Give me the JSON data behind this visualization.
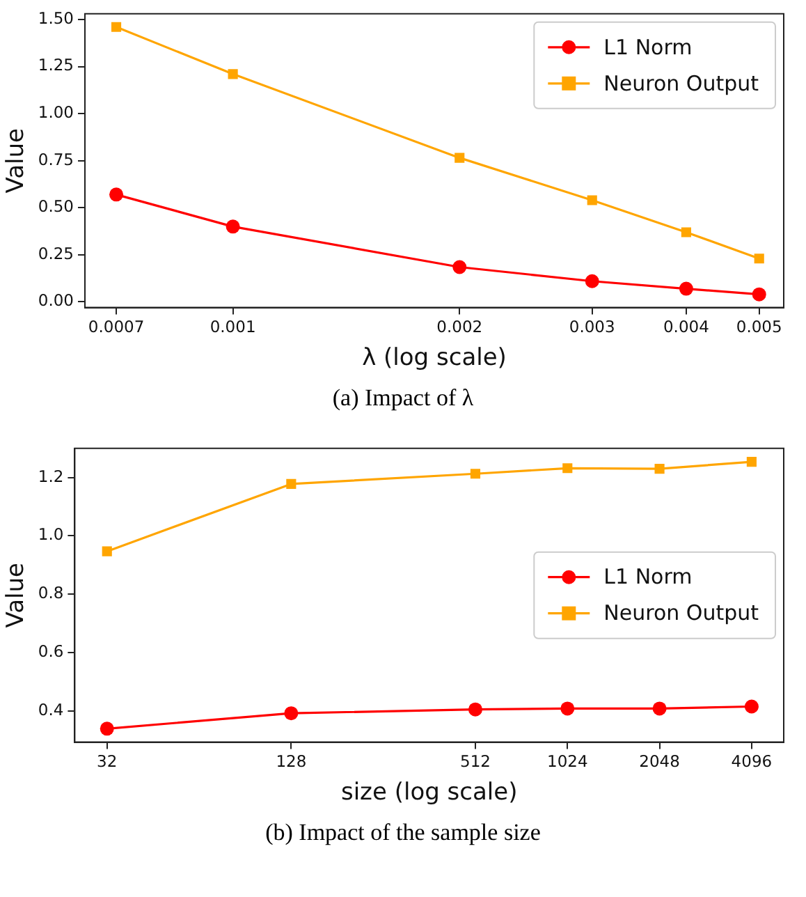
{
  "chart_data": [
    {
      "type": "line",
      "xlabel": "λ (log scale)",
      "ylabel": "Value",
      "annotations": [
        "(a) Impact of λ"
      ],
      "log": "x",
      "x": [
        0.0007,
        0.001,
        0.002,
        0.003,
        0.004,
        0.005
      ],
      "xlim": [
        0.000636,
        0.00539
      ],
      "xticks": [
        0.0007,
        0.001,
        0.002,
        0.003,
        0.004,
        0.005
      ],
      "ylim": [
        -0.03,
        1.53
      ],
      "yticks": [
        {
          "value": 0,
          "label": "0.00"
        },
        {
          "value": 0.25,
          "label": "0.25"
        },
        {
          "value": 0.5,
          "label": "0.50"
        },
        {
          "value": 0.75,
          "label": "0.75"
        },
        {
          "value": 1,
          "label": "1.00"
        },
        {
          "value": 1.25,
          "label": "1.25"
        },
        {
          "value": 1.5,
          "label": "1.50"
        }
      ],
      "grid": false,
      "legend": "top right",
      "line_style": "solid",
      "series": [
        {
          "name": "L1 Norm",
          "color": "#ff0000",
          "marker": "circle",
          "values": [
            0.57,
            0.4,
            0.185,
            0.11,
            0.07,
            0.04
          ]
        },
        {
          "name": "Neuron Output",
          "color": "#ffa500",
          "marker": "square",
          "values": [
            1.46,
            1.21,
            0.765,
            0.54,
            0.37,
            0.23
          ]
        }
      ]
    },
    {
      "type": "line",
      "xlabel": "size (log scale)",
      "ylabel": "Value",
      "annotations": [
        "(b) Impact of the sample size"
      ],
      "log": "x",
      "x": [
        32,
        128,
        512,
        1024,
        2048,
        4096
      ],
      "xlim": [
        25.1,
        5215
      ],
      "xticks": [
        32,
        128,
        512,
        1024,
        2048,
        4096
      ],
      "ylim": [
        0.293,
        1.3
      ],
      "yticks": [
        {
          "value": 0.4,
          "label": "0.4"
        },
        {
          "value": 0.6,
          "label": "0.6"
        },
        {
          "value": 0.8,
          "label": "0.8"
        },
        {
          "value": 1,
          "label": "1.0"
        },
        {
          "value": 1.2,
          "label": "1.2"
        }
      ],
      "grid": false,
      "legend": "right",
      "line_style": "solid",
      "series": [
        {
          "name": "L1 Norm",
          "color": "#ff0000",
          "marker": "circle",
          "values": [
            0.339,
            0.392,
            0.405,
            0.408,
            0.408,
            0.415
          ]
        },
        {
          "name": "Neuron Output",
          "color": "#ffa500",
          "marker": "square",
          "values": [
            0.947,
            1.178,
            1.213,
            1.232,
            1.23,
            1.254
          ]
        }
      ]
    }
  ]
}
